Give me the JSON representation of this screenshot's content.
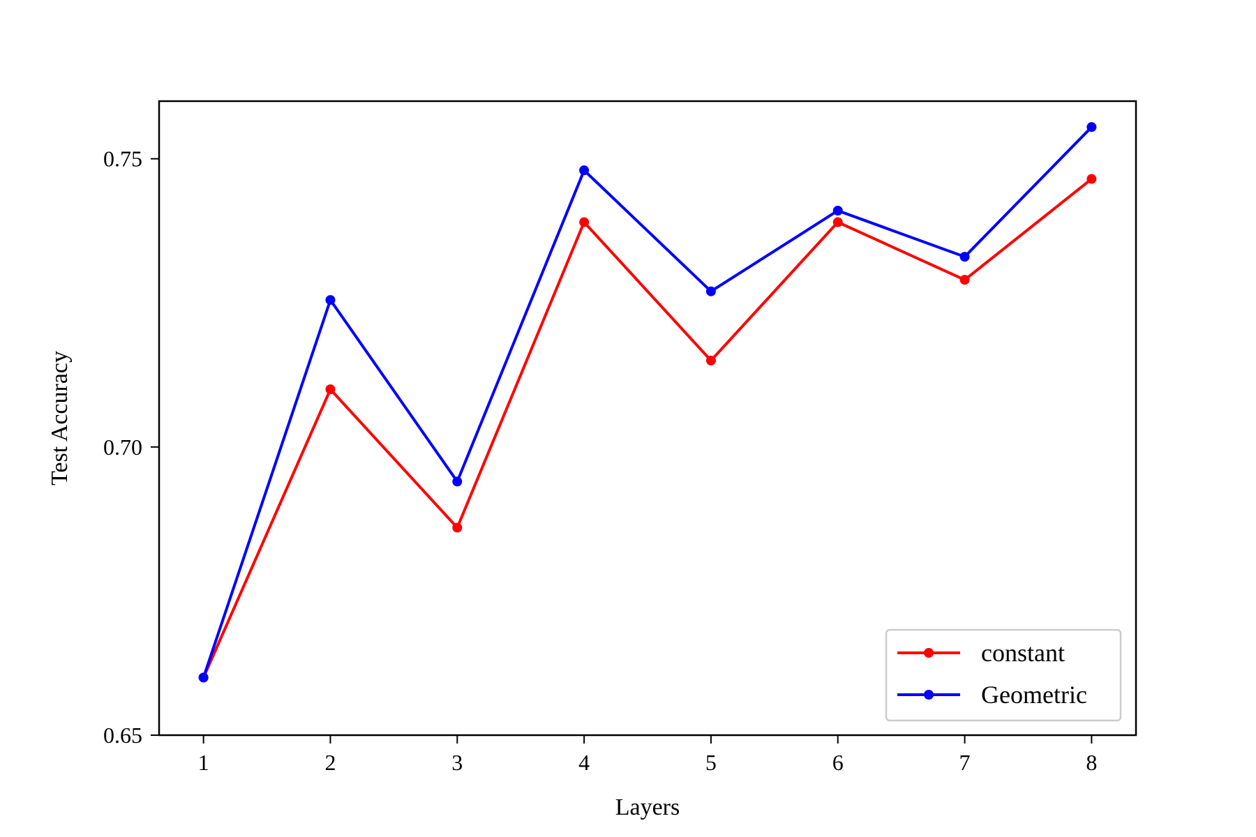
{
  "chart_data": {
    "type": "line",
    "xlabel": "Layers",
    "ylabel": "Test Accuracy",
    "x": [
      1,
      2,
      3,
      4,
      5,
      6,
      7,
      8
    ],
    "xticks": [
      "1",
      "2",
      "3",
      "4",
      "5",
      "6",
      "7",
      "8"
    ],
    "yticks": [
      "0.65",
      "0.70",
      "0.75"
    ],
    "ylim": [
      0.65,
      0.76
    ],
    "xlim": [
      0.65,
      8.35
    ],
    "grid": false,
    "legend_position": "lower-right",
    "series": [
      {
        "name": "constant",
        "color": "#ff0000",
        "values": [
          0.66,
          0.71,
          0.686,
          0.739,
          0.715,
          0.739,
          0.729,
          0.7465
        ]
      },
      {
        "name": "Geometric",
        "color": "#0000ff",
        "values": [
          0.66,
          0.7255,
          0.694,
          0.748,
          0.727,
          0.741,
          0.733,
          0.7555
        ]
      }
    ]
  }
}
